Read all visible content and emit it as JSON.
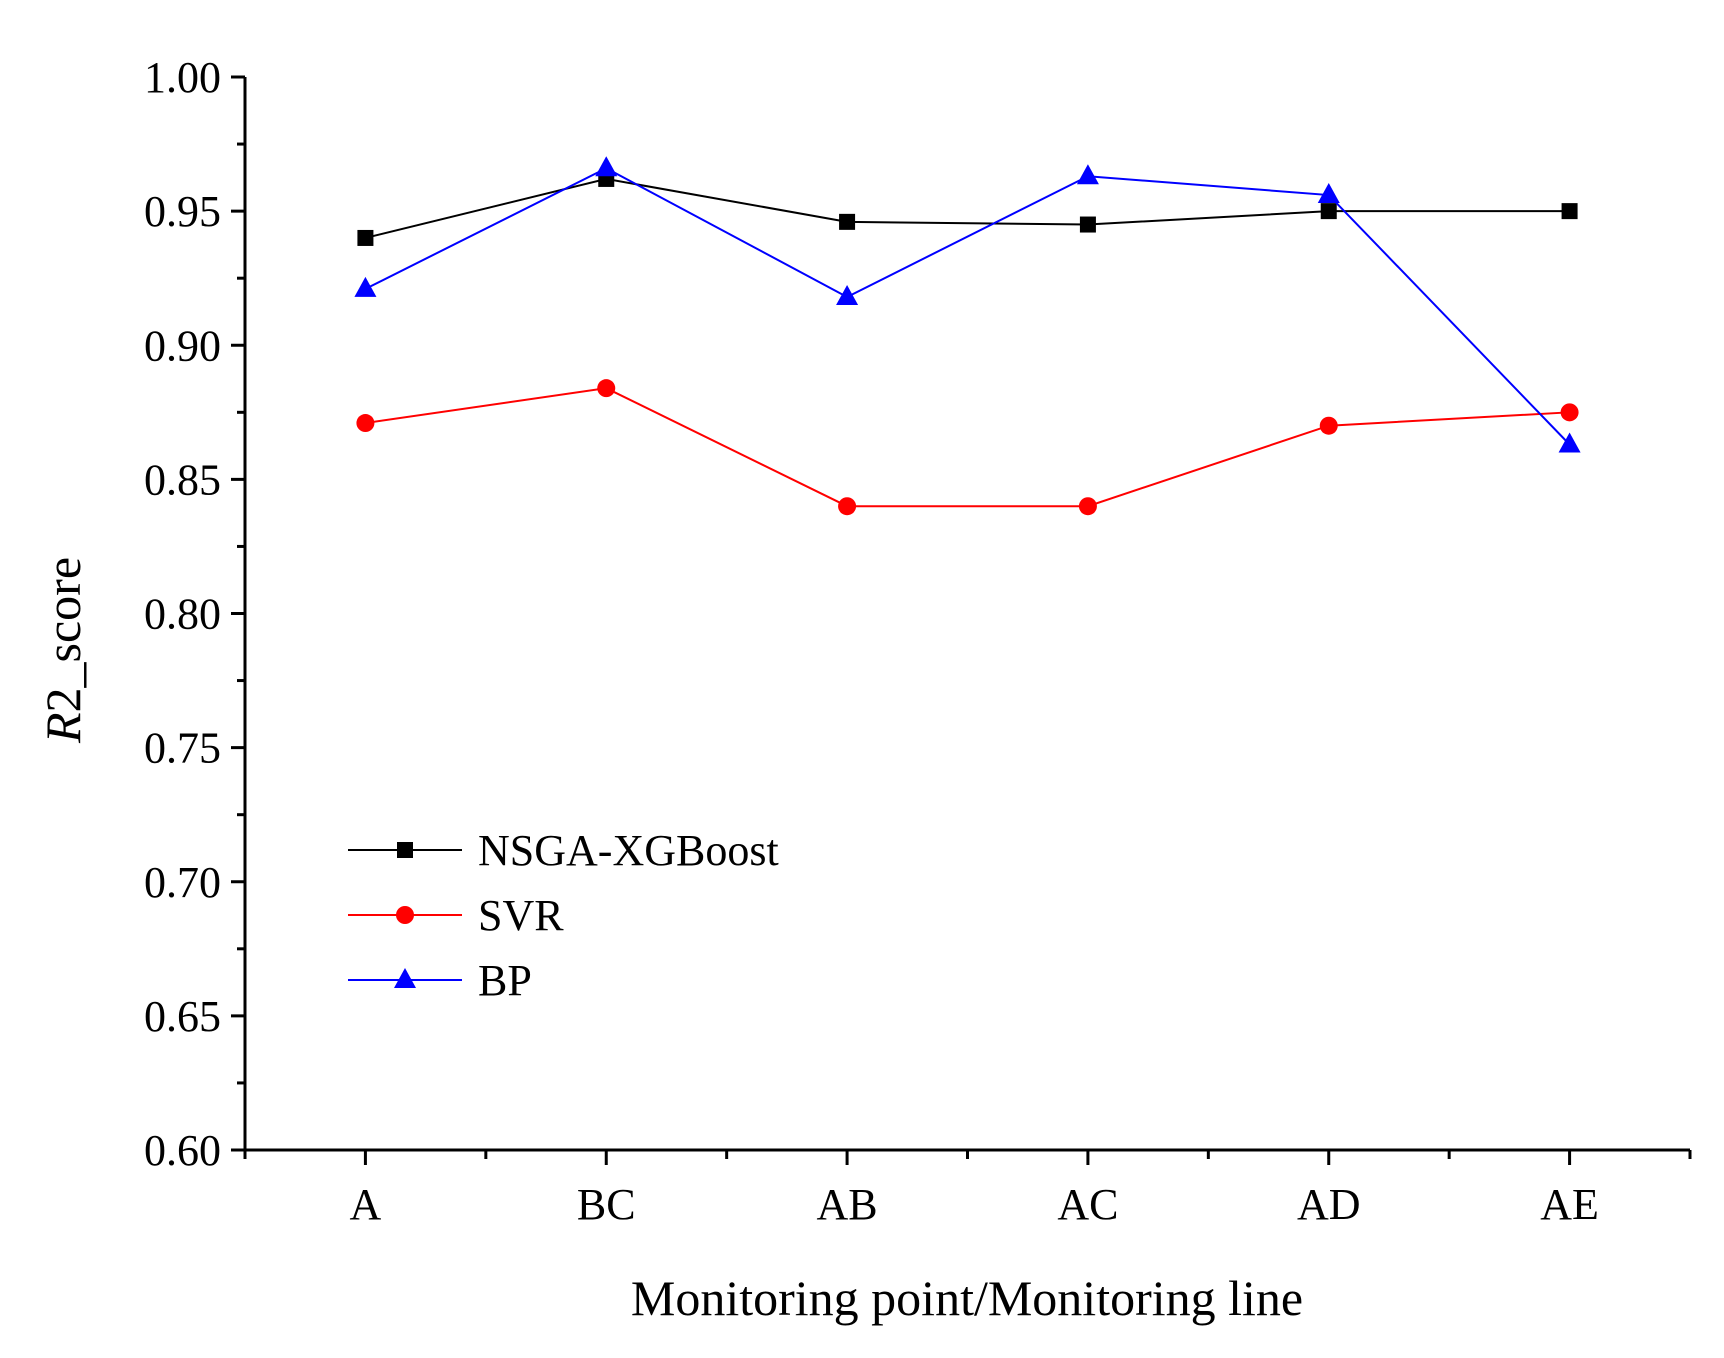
{
  "chart_data": {
    "type": "line",
    "title": "",
    "xlabel": "Monitoring point/Monitoring line",
    "ylabel_italic": "R",
    "ylabel_rest": "2_score",
    "categories": [
      "A",
      "BC",
      "AB",
      "AC",
      "AD",
      "AE"
    ],
    "ylim": [
      0.6,
      1.0
    ],
    "yticks": [
      "0.60",
      "0.65",
      "0.70",
      "0.75",
      "0.80",
      "0.85",
      "0.90",
      "0.95",
      "1.00"
    ],
    "grid": false,
    "legend_position": "center-left",
    "series": [
      {
        "name": "NSGA-XGBoost",
        "color": "#000000",
        "marker": "square",
        "values": [
          0.94,
          0.962,
          0.946,
          0.945,
          0.95,
          0.95
        ]
      },
      {
        "name": "SVR",
        "color": "#ff0000",
        "marker": "circle",
        "values": [
          0.871,
          0.884,
          0.84,
          0.84,
          0.87,
          0.875
        ]
      },
      {
        "name": "BP",
        "color": "#0000ff",
        "marker": "triangle",
        "values": [
          0.921,
          0.966,
          0.918,
          0.963,
          0.956,
          0.863
        ]
      }
    ]
  }
}
